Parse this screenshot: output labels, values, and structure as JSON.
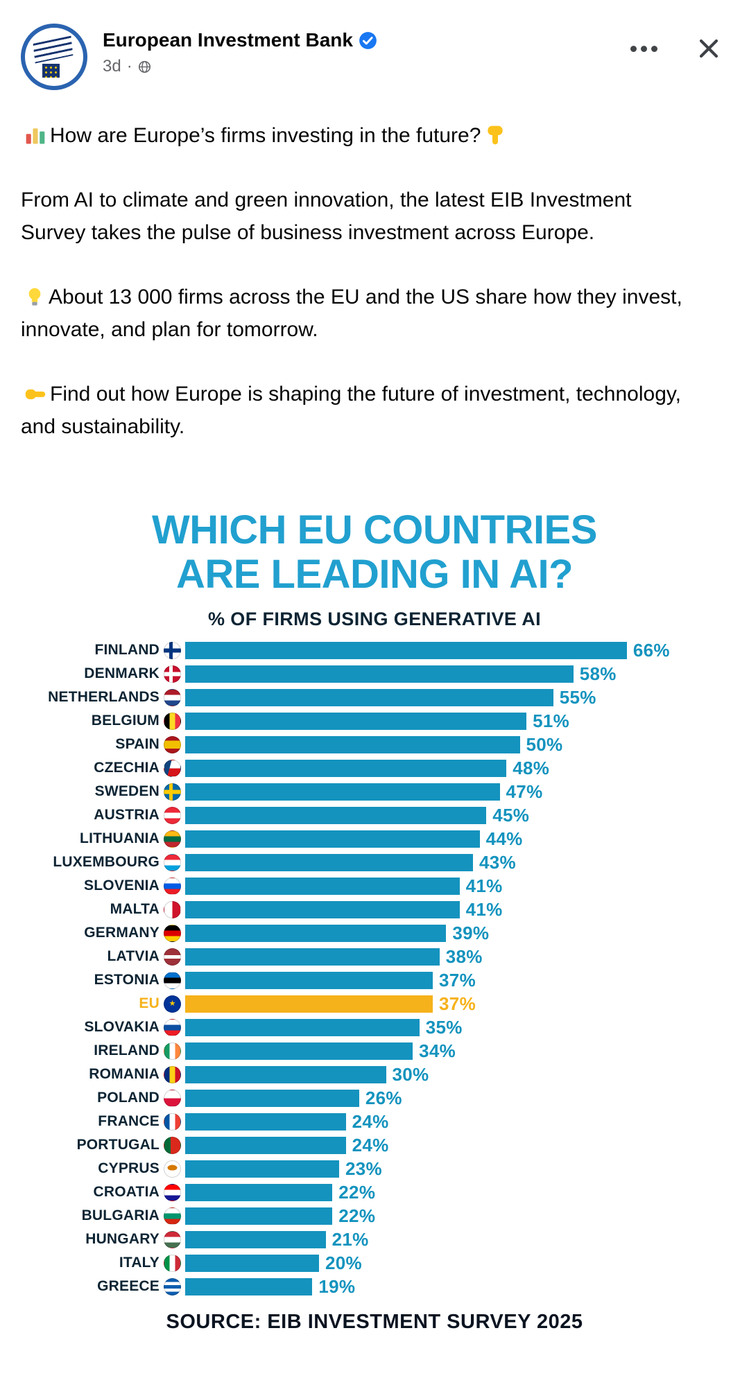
{
  "colors": {
    "bar_blue": "#1493BE",
    "title_blue": "#21A0CF",
    "eu_gold": "#F6B21B",
    "text_dark": "#0D2433",
    "post_text": "#050505",
    "meta_gray": "#65676B",
    "verified_blue": "#1877F2",
    "logo_navy": "#16346F",
    "logo_ring_blue": "#2A63B0"
  },
  "header": {
    "page_name": "European Investment Bank",
    "verified": true,
    "timestamp": "3d",
    "meta_separator": "·",
    "audience_icon": "globe-icon",
    "menu_icon": "ellipsis-icon",
    "close_icon": "close-icon"
  },
  "post": {
    "paragraphs": [
      {
        "icon_before": "bar-chart-emoji",
        "text": "How are Europe’s firms investing in the future?",
        "icon_after": "point-down-emoji"
      },
      {
        "text": "From AI to climate and green innovation, the latest EIB Investment Survey takes the pulse of business investment across Europe."
      },
      {
        "icon_before": "bulb-emoji",
        "text": "About 13 000 firms across the EU and the US share how they invest, innovate, and plan for tomorrow."
      },
      {
        "icon_before": "point-right-emoji",
        "text": "Find out how Europe is shaping the future of investment, technology, and sustainability."
      }
    ]
  },
  "chart_data": {
    "type": "bar",
    "orientation": "horizontal",
    "title": "WHICH EU COUNTRIES ARE LEADING IN AI?",
    "title_lines": [
      "WHICH EU COUNTRIES",
      "ARE LEADING IN AI?"
    ],
    "subtitle": "% OF FIRMS USING GENERATIVE AI",
    "source": "SOURCE: EIB INVESTMENT SURVEY 2025",
    "unit": "%",
    "xlim": [
      0,
      70
    ],
    "grid": false,
    "legend": false,
    "highlight": "EU",
    "categories": [
      "FINLAND",
      "DENMARK",
      "NETHERLANDS",
      "BELGIUM",
      "SPAIN",
      "CZECHIA",
      "SWEDEN",
      "AUSTRIA",
      "LITHUANIA",
      "LUXEMBOURG",
      "SLOVENIA",
      "MALTA",
      "GERMANY",
      "LATVIA",
      "ESTONIA",
      "EU",
      "SLOVAKIA",
      "IRELAND",
      "ROMANIA",
      "POLAND",
      "FRANCE",
      "PORTUGAL",
      "CYPRUS",
      "CROATIA",
      "BULGARIA",
      "HUNGARY",
      "ITALY",
      "GREECE"
    ],
    "values": [
      66,
      58,
      55,
      51,
      50,
      48,
      47,
      45,
      44,
      43,
      41,
      41,
      39,
      38,
      37,
      37,
      35,
      34,
      30,
      26,
      24,
      24,
      23,
      22,
      22,
      21,
      20,
      19
    ],
    "flags": [
      {
        "t": "cross",
        "bg": "#FFFFFF",
        "cr": "#003580"
      },
      {
        "t": "cross",
        "bg": "#C8102E",
        "cr": "#FFFFFF"
      },
      {
        "t": "h",
        "c": [
          "#AE1C28",
          "#FFFFFF",
          "#21468B"
        ]
      },
      {
        "t": "v",
        "c": [
          "#000000",
          "#FDDA24",
          "#EF3340"
        ]
      },
      {
        "t": "h",
        "c": [
          "#AA151B",
          "#F1BF00",
          "#AA151B"
        ],
        "stops": [
          0,
          25,
          75,
          100
        ]
      },
      {
        "t": "czech",
        "c": [
          "#FFFFFF",
          "#D7141A"
        ],
        "wedge": "#11457E"
      },
      {
        "t": "cross",
        "bg": "#006AA7",
        "cr": "#FECC02"
      },
      {
        "t": "h",
        "c": [
          "#ED2939",
          "#FFFFFF",
          "#ED2939"
        ]
      },
      {
        "t": "h",
        "c": [
          "#FDB913",
          "#006A44",
          "#C1272D"
        ]
      },
      {
        "t": "h",
        "c": [
          "#ED2939",
          "#FFFFFF",
          "#00A1DE"
        ]
      },
      {
        "t": "h",
        "c": [
          "#FFFFFF",
          "#005CE5",
          "#ED1C24"
        ]
      },
      {
        "t": "v",
        "c": [
          "#FFFFFF",
          "#CF142B"
        ]
      },
      {
        "t": "h",
        "c": [
          "#000000",
          "#DD0000",
          "#FFCE00"
        ]
      },
      {
        "t": "h",
        "c": [
          "#9E3039",
          "#FFFFFF",
          "#9E3039"
        ],
        "stops": [
          0,
          40,
          60,
          100
        ]
      },
      {
        "t": "h",
        "c": [
          "#0072CE",
          "#000000",
          "#FFFFFF"
        ]
      },
      {
        "t": "eu",
        "bg": "#003399",
        "star": "#FFCC00"
      },
      {
        "t": "h",
        "c": [
          "#FFFFFF",
          "#0B4EA2",
          "#EE1C25"
        ]
      },
      {
        "t": "v",
        "c": [
          "#169B62",
          "#FFFFFF",
          "#FF883E"
        ]
      },
      {
        "t": "v",
        "c": [
          "#002B7F",
          "#FCD116",
          "#CE1126"
        ]
      },
      {
        "t": "h",
        "c": [
          "#FFFFFF",
          "#DC143C"
        ]
      },
      {
        "t": "v",
        "c": [
          "#0055A4",
          "#FFFFFF",
          "#EF4135"
        ]
      },
      {
        "t": "v",
        "c": [
          "#046A38",
          "#DA291C"
        ],
        "stops": [
          0,
          40,
          100
        ]
      },
      {
        "t": "cyprus",
        "bg": "#FFFFFF",
        "isle": "#D57800"
      },
      {
        "t": "h",
        "c": [
          "#FF0000",
          "#FFFFFF",
          "#171796"
        ]
      },
      {
        "t": "h",
        "c": [
          "#FFFFFF",
          "#00966E",
          "#D62612"
        ]
      },
      {
        "t": "h",
        "c": [
          "#CE2939",
          "#FFFFFF",
          "#477050"
        ]
      },
      {
        "t": "v",
        "c": [
          "#009246",
          "#FFFFFF",
          "#CE2B37"
        ]
      },
      {
        "t": "h",
        "c": [
          "#0D5EAF",
          "#FFFFFF",
          "#0D5EAF",
          "#FFFFFF",
          "#0D5EAF"
        ]
      }
    ]
  }
}
